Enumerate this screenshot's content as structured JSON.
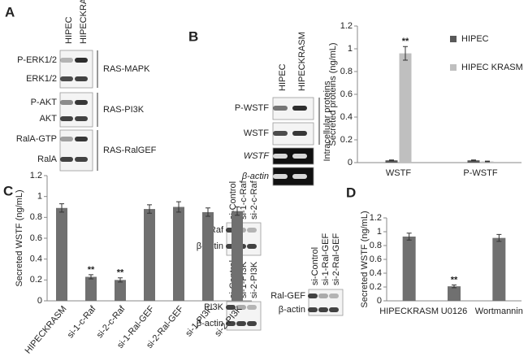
{
  "panels": [
    "A",
    "B",
    "C",
    "D"
  ],
  "blots": {
    "a": {
      "columns": [
        "HIPEC",
        "HIPECKRASM"
      ],
      "rows": [
        "P-ERK1/2",
        "ERK1/2",
        "P-AKT",
        "AKT",
        "RalA-GTP",
        "RalA"
      ],
      "groups": [
        "RAS-MAPK",
        "RAS-PI3K",
        "RAS-RalGEF"
      ]
    },
    "b": {
      "columns": [
        "HIPEC",
        "HIPECKRASM"
      ],
      "rows": [
        "P-WSTF",
        "WSTF",
        "WSTF",
        "β-actin"
      ],
      "group": "Intracellular proteins"
    },
    "c": [
      {
        "columns": [
          "si-Control",
          "si-1-c-Raf",
          "si-2-c-Raf"
        ],
        "rows": [
          "c-Raf",
          "β-actin"
        ]
      },
      {
        "columns": [
          "si-Control",
          "si-1-PI3K",
          "si-2-PI3K"
        ],
        "rows": [
          "PI3K",
          "β-actin"
        ]
      },
      {
        "columns": [
          "si-Control",
          "si-1-Ral-GEF",
          "si-2-Ral-GEF"
        ],
        "rows": [
          "Ral-GEF",
          "β-actin"
        ]
      }
    ]
  },
  "chart_data": [
    {
      "type": "bar",
      "y_label": "Secreted proteins (ng/mL)",
      "categories": [
        "WSTF",
        "P-WSTF"
      ],
      "series": [
        {
          "name": "HIPEC",
          "color": "#595959",
          "values": [
            0.02,
            0.02
          ],
          "errors": [
            0.003,
            0.003
          ],
          "annotations": [
            null,
            null
          ]
        },
        {
          "name": "HIPEC KRASM",
          "color": "#bfbfbf",
          "values": [
            0.96,
            0.01
          ],
          "errors": [
            0.06,
            0.003
          ],
          "annotations": [
            "**",
            null
          ]
        }
      ],
      "ylim": [
        0,
        1.2
      ],
      "yticks": [
        0,
        0.2,
        0.4,
        0.6,
        0.8,
        1,
        1.2
      ],
      "legend": "right"
    },
    {
      "type": "bar",
      "y_label": "Secreted WSTF (ng/mL)",
      "categories": [
        "HIPECKRASM",
        "si-1-c-Raf",
        "si-2-c-Raf",
        "si-1-Ral-GEF",
        "si-2-Ral-GEF",
        "si-1-PI3K",
        "si-2-PI3K"
      ],
      "values": [
        0.89,
        0.23,
        0.2,
        0.88,
        0.9,
        0.85,
        0.86
      ],
      "errors": [
        0.04,
        0.02,
        0.02,
        0.04,
        0.05,
        0.04,
        0.04
      ],
      "annotations": [
        null,
        "**",
        "**",
        null,
        null,
        null,
        null
      ],
      "color": "#707070",
      "ylim": [
        0,
        1.2
      ],
      "yticks": [
        0,
        0.2,
        0.4,
        0.6,
        0.8,
        1,
        1.2
      ]
    },
    {
      "type": "bar",
      "y_label": "Secreted WSTF (ng/mL)",
      "categories": [
        "HIPECKRASM",
        "U0126",
        "Wortmannin"
      ],
      "values": [
        0.93,
        0.21,
        0.91
      ],
      "errors": [
        0.05,
        0.02,
        0.05
      ],
      "annotations": [
        null,
        "**",
        null
      ],
      "color": "#707070",
      "ylim": [
        0,
        1.2
      ],
      "yticks": [
        0,
        0.2,
        0.4,
        0.6,
        0.8,
        1,
        1.2
      ]
    }
  ]
}
